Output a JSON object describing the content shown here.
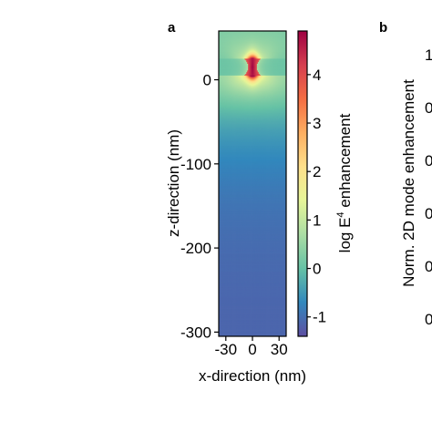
{
  "panels": {
    "a": "a",
    "b": "b"
  },
  "chart_data": [
    {
      "type": "heatmap",
      "panel": "a",
      "xlabel": "x-direction (nm)",
      "ylabel": "z-direction (nm)",
      "x_ticks": [
        "-30",
        "0",
        "30"
      ],
      "x_tick_values": [
        -30,
        0,
        30
      ],
      "y_ticks": [
        "0",
        "-100",
        "-200",
        "-300"
      ],
      "y_tick_values": [
        0,
        -100,
        -200,
        -300
      ],
      "xlim": [
        -38,
        38
      ],
      "ylim": [
        -305,
        58
      ],
      "colorbar": {
        "label_prefix": "log E",
        "label_sup": "4",
        "label_suffix": " enhancement",
        "ticks": [
          "4",
          "3",
          "2",
          "1",
          "0",
          "-1"
        ],
        "tick_values": [
          4,
          3,
          2,
          1,
          0,
          -1
        ],
        "range": [
          -1.4,
          4.9
        ],
        "colormap": "Spectral_r",
        "colors": [
          "#5e4fa2",
          "#3288bd",
          "#66c2a5",
          "#abdda4",
          "#e6f598",
          "#fee08b",
          "#fdae61",
          "#f46d43",
          "#d53e4f",
          "#9e0142"
        ]
      },
      "features": {
        "bowtie_gap_z": [
          5,
          25
        ],
        "hotspot_value": 4.8,
        "background_value": -1.1
      }
    },
    {
      "type": "line",
      "panel": "b",
      "ylabel": "Norm. 2D mode enhancement",
      "y_ticks": [
        "1",
        "0",
        "0",
        "0",
        "0",
        "0"
      ]
    }
  ]
}
